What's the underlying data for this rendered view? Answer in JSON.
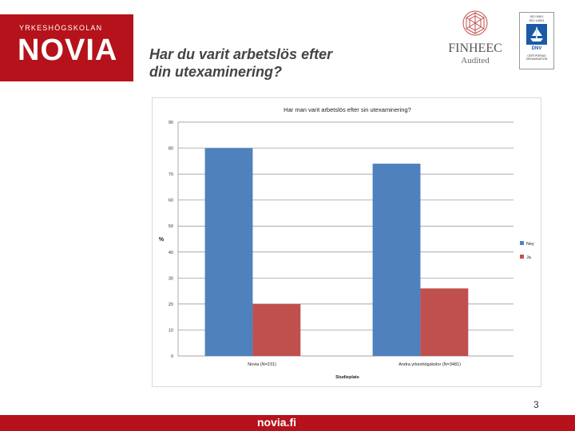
{
  "header": {
    "logo_small": "YRKESHÖGSKOLAN",
    "logo_big": "NOVIA",
    "title_line1": "Har du varit arbetslös efter",
    "title_line2": "din utexaminering?"
  },
  "badges": {
    "finheec_name": "FINHEEC",
    "finheec_sub": "Audited",
    "dnv_iso_line1": "ISO 9001",
    "dnv_iso_line2": "ISO 14001",
    "dnv_text": "DNV",
    "dnv_cert_line1": "CERTIFIERAD",
    "dnv_cert_line2": "ORGANISATION"
  },
  "colors": {
    "brand_red": "#b5121b",
    "series_ney": "#4f81bd",
    "series_ja": "#c0504d"
  },
  "chart_data": {
    "type": "bar",
    "title": "Har man varit arbetslös efter sin utexaminering?",
    "xlabel": "Studieplats",
    "ylabel": "%",
    "categories": [
      "Novia (N=231)",
      "Andra yrkeshögskolor (N=3481)"
    ],
    "series": [
      {
        "name": "Ney",
        "values": [
          80,
          74
        ]
      },
      {
        "name": "Ja",
        "values": [
          20,
          26
        ]
      }
    ],
    "ylim": [
      0,
      90
    ],
    "yticks": [
      0,
      10,
      20,
      30,
      40,
      50,
      60,
      70,
      80,
      90
    ],
    "grid": true,
    "legend": "right"
  },
  "footer": {
    "page_number": "3",
    "url": "novia.fi"
  }
}
